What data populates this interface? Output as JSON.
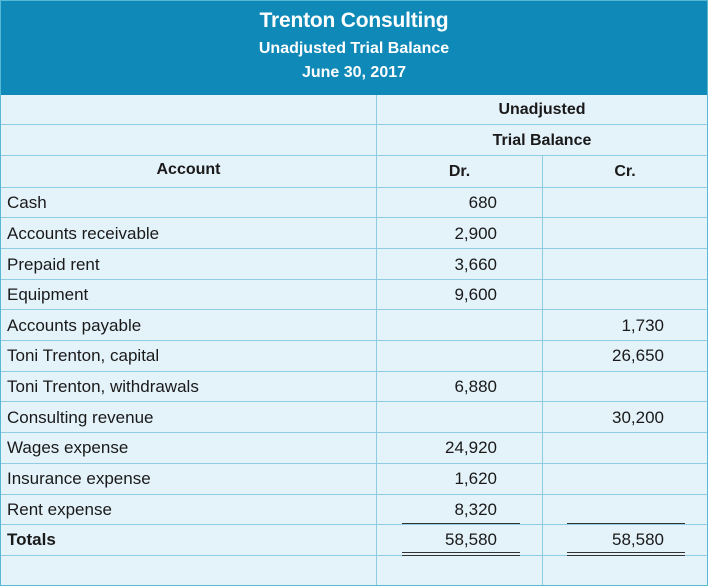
{
  "header": {
    "company": "Trenton Consulting",
    "report_title": "Unadjusted Trial Balance",
    "date": "June 30, 2017"
  },
  "columns": {
    "group_line1": "Unadjusted",
    "group_line2": "Trial Balance",
    "account": "Account",
    "debit": "Dr.",
    "credit": "Cr."
  },
  "rows": [
    {
      "account": "Cash",
      "dr": "680",
      "cr": ""
    },
    {
      "account": "Accounts receivable",
      "dr": "2,900",
      "cr": ""
    },
    {
      "account": "Prepaid rent",
      "dr": "3,660",
      "cr": ""
    },
    {
      "account": "Equipment",
      "dr": "9,600",
      "cr": ""
    },
    {
      "account": "Accounts payable",
      "dr": "",
      "cr": "1,730"
    },
    {
      "account": "Toni Trenton, capital",
      "dr": "",
      "cr": "26,650"
    },
    {
      "account": "Toni Trenton, withdrawals",
      "dr": "6,880",
      "cr": ""
    },
    {
      "account": "Consulting revenue",
      "dr": "",
      "cr": "30,200"
    },
    {
      "account": "Wages expense",
      "dr": "24,920",
      "cr": ""
    },
    {
      "account": "Insurance expense",
      "dr": "1,620",
      "cr": ""
    },
    {
      "account": "Rent expense",
      "dr": "8,320",
      "cr": ""
    }
  ],
  "totals": {
    "label": "Totals",
    "dr": "58,580",
    "cr": "58,580"
  }
}
